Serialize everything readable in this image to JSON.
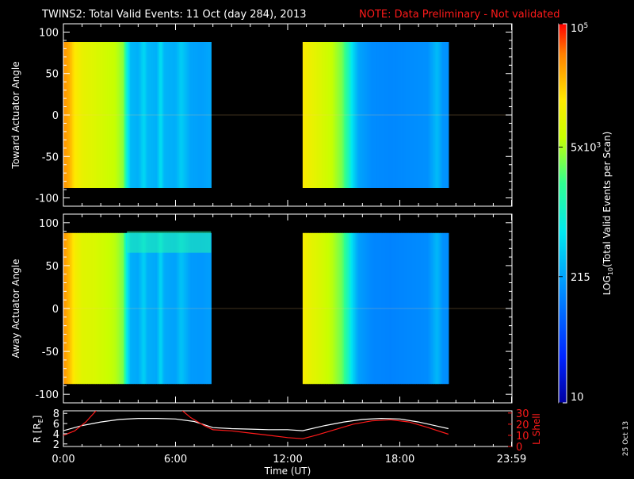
{
  "title": "TWINS2: Total Valid Events: 11 Oct (day 284), 2013",
  "note": "NOTE: Data Preliminary - Not validated",
  "stamp": "25 Oct 13",
  "colors": {
    "background": "#000000",
    "axes": "#ffffff",
    "note": "#ff1a1a",
    "r_line": "#ffffff",
    "lshell_line": "#ff1a1a"
  },
  "colorbar": {
    "label_prefix": "LOG",
    "label_sub": "10",
    "label_suffix": "(Total Valid Events per Scan)",
    "scale": "log",
    "range": [
      10,
      100000
    ],
    "ticks": [
      {
        "value": 10,
        "label": "10"
      },
      {
        "value": 215,
        "label": "215"
      },
      {
        "value": 5000,
        "label": "5x10",
        "sup": "3"
      },
      {
        "value": 100000,
        "label": "10",
        "sup": "5"
      }
    ]
  },
  "chart_data": [
    {
      "type": "heatmap",
      "name": "toward",
      "ylabel": "Toward Actuator Angle",
      "xlim": [
        0,
        24
      ],
      "ylim": [
        -110,
        110
      ],
      "y_extent": [
        -88,
        88
      ],
      "yticks": [
        100,
        50,
        0,
        -50,
        -100
      ],
      "segments": [
        {
          "start": 0.0,
          "end": 7.9,
          "profile": [
            [
              0.0,
              40000
            ],
            [
              0.3,
              30000
            ],
            [
              0.6,
              16000
            ],
            [
              1.0,
              11000
            ],
            [
              1.6,
              9000
            ],
            [
              2.2,
              7500
            ],
            [
              2.8,
              6000
            ],
            [
              3.2,
              4000
            ],
            [
              3.4,
              900
            ],
            [
              3.6,
              300
            ],
            [
              4.0,
              260
            ],
            [
              4.3,
              500
            ],
            [
              4.5,
              300
            ],
            [
              5.0,
              260
            ],
            [
              5.2,
              600
            ],
            [
              5.4,
              280
            ],
            [
              6.0,
              250
            ],
            [
              6.3,
              420
            ],
            [
              6.8,
              220
            ],
            [
              7.4,
              200
            ],
            [
              7.9,
              230
            ]
          ]
        },
        {
          "start": 12.8,
          "end": 20.6,
          "profile": [
            [
              12.8,
              15000
            ],
            [
              13.3,
              11000
            ],
            [
              13.8,
              8500
            ],
            [
              14.4,
              6000
            ],
            [
              14.9,
              3500
            ],
            [
              15.2,
              1500
            ],
            [
              15.5,
              500
            ],
            [
              15.8,
              220
            ],
            [
              16.5,
              150
            ],
            [
              17.5,
              140
            ],
            [
              18.5,
              150
            ],
            [
              19.5,
              160
            ],
            [
              20.0,
              320
            ],
            [
              20.3,
              170
            ],
            [
              20.6,
              160
            ]
          ]
        }
      ]
    },
    {
      "type": "heatmap",
      "name": "away",
      "ylabel": "Away Actuator Angle",
      "xlim": [
        0,
        24
      ],
      "ylim": [
        -110,
        110
      ],
      "y_extent": [
        -88,
        88
      ],
      "yticks": [
        100,
        50,
        0,
        -50,
        -100
      ],
      "band": {
        "x_range": [
          3.4,
          7.9
        ],
        "y_range": [
          65,
          90
        ],
        "level": 1500
      },
      "segments": [
        {
          "start": 0.0,
          "end": 7.9,
          "profile": [
            [
              0.0,
              40000
            ],
            [
              0.3,
              26000
            ],
            [
              0.6,
              14000
            ],
            [
              1.0,
              9500
            ],
            [
              1.6,
              8500
            ],
            [
              2.2,
              7000
            ],
            [
              2.8,
              5500
            ],
            [
              3.2,
              3500
            ],
            [
              3.4,
              700
            ],
            [
              3.6,
              260
            ],
            [
              4.0,
              230
            ],
            [
              4.3,
              450
            ],
            [
              4.5,
              260
            ],
            [
              5.0,
              230
            ],
            [
              5.2,
              520
            ],
            [
              5.4,
              240
            ],
            [
              6.0,
              210
            ],
            [
              6.3,
              360
            ],
            [
              6.8,
              190
            ],
            [
              7.4,
              180
            ],
            [
              7.9,
              200
            ]
          ]
        },
        {
          "start": 12.8,
          "end": 20.6,
          "profile": [
            [
              12.8,
              14000
            ],
            [
              13.3,
              10000
            ],
            [
              13.8,
              8000
            ],
            [
              14.4,
              5500
            ],
            [
              14.9,
              3200
            ],
            [
              15.2,
              1300
            ],
            [
              15.5,
              450
            ],
            [
              15.8,
              200
            ],
            [
              16.5,
              140
            ],
            [
              17.5,
              130
            ],
            [
              18.5,
              140
            ],
            [
              19.5,
              150
            ],
            [
              20.0,
              300
            ],
            [
              20.3,
              160
            ],
            [
              20.6,
              150
            ]
          ]
        }
      ]
    },
    {
      "type": "line",
      "name": "orbit",
      "xlabel": "Time (UT)",
      "xlim": [
        0,
        24
      ],
      "xticks": [
        {
          "value": 0,
          "label": "0:00"
        },
        {
          "value": 6,
          "label": "6:00"
        },
        {
          "value": 12,
          "label": "12:00"
        },
        {
          "value": 18,
          "label": "18:00"
        },
        {
          "value": 23.98,
          "label": "23:59"
        }
      ],
      "y_left": {
        "label": "R [R",
        "label_sub": "E",
        "label_close": "]",
        "range": [
          1.5,
          8.5
        ],
        "ticks": [
          2,
          4,
          6,
          8
        ]
      },
      "y_right": {
        "label": "L Shell",
        "range": [
          0,
          32
        ],
        "ticks": [
          0,
          10,
          20,
          30
        ]
      },
      "series": [
        {
          "axis": "left",
          "color": "#ffffff",
          "points": [
            [
              0.0,
              4.6
            ],
            [
              1.0,
              5.6
            ],
            [
              2.0,
              6.3
            ],
            [
              3.0,
              6.8
            ],
            [
              4.0,
              7.0
            ],
            [
              5.0,
              7.0
            ],
            [
              6.0,
              6.9
            ],
            [
              7.0,
              6.4
            ],
            [
              8.0,
              5.2
            ],
            [
              9.0,
              5.0
            ],
            [
              10.0,
              4.9
            ],
            [
              11.0,
              4.8
            ],
            [
              12.0,
              4.8
            ],
            [
              12.8,
              4.6
            ],
            [
              14.0,
              5.6
            ],
            [
              15.0,
              6.3
            ],
            [
              16.0,
              6.8
            ],
            [
              17.0,
              7.0
            ],
            [
              18.0,
              6.9
            ],
            [
              19.0,
              6.3
            ],
            [
              20.0,
              5.5
            ],
            [
              20.6,
              5.0
            ]
          ]
        },
        {
          "axis": "right",
          "color": "#ff1a1a",
          "points": [
            [
              0.0,
              10.0
            ],
            [
              0.6,
              14.0
            ],
            [
              1.2,
              22.0
            ],
            [
              1.8,
              33.0
            ]
          ]
        },
        {
          "axis": "right",
          "color": "#ff1a1a",
          "points": [
            [
              6.3,
              33.0
            ],
            [
              6.8,
              26.0
            ],
            [
              7.5,
              19.0
            ],
            [
              8.0,
              15.0
            ],
            [
              9.0,
              14.0
            ],
            [
              10.0,
              12.0
            ],
            [
              11.0,
              10.0
            ],
            [
              12.0,
              8.0
            ],
            [
              12.8,
              7.0
            ],
            [
              13.5,
              10.0
            ],
            [
              14.5,
              15.0
            ],
            [
              15.5,
              20.0
            ],
            [
              16.5,
              23.0
            ],
            [
              17.5,
              24.0
            ],
            [
              18.5,
              22.0
            ],
            [
              19.5,
              17.0
            ],
            [
              20.6,
              11.0
            ]
          ]
        }
      ]
    }
  ]
}
